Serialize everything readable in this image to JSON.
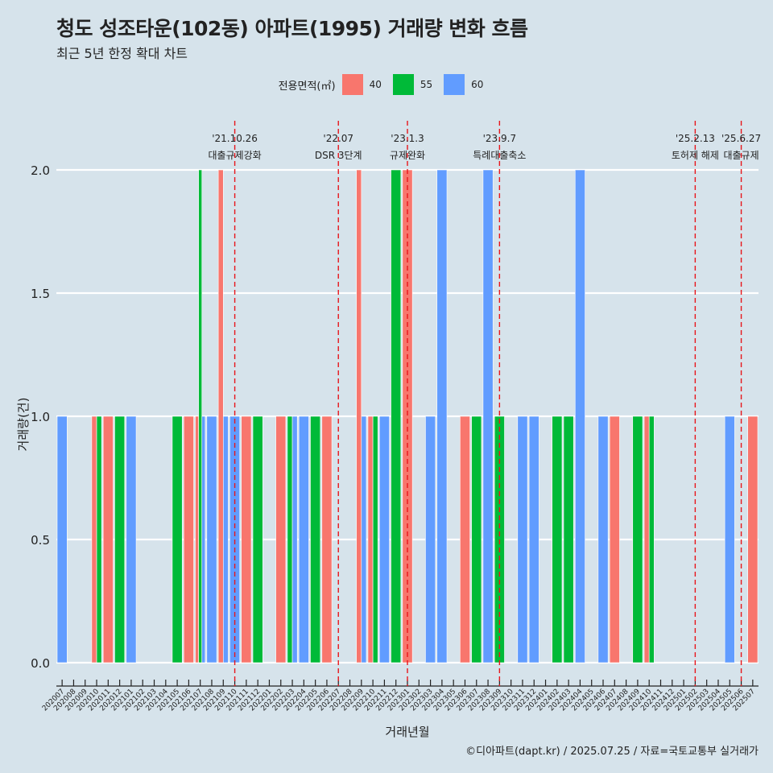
{
  "title": "청도 성조타운(102동) 아파트(1995) 거래량 변화 흐름",
  "subtitle": "최근 5년 한정 확대 차트",
  "caption": "©디아파트(dapt.kr) / 2025.07.25 / 자료=국토교통부 실거래가",
  "legend": {
    "title": "전용면적(㎡)",
    "items": [
      {
        "label": "40",
        "color": "#f8766d"
      },
      {
        "label": "55",
        "color": "#00ba38"
      },
      {
        "label": "60",
        "color": "#619cff"
      }
    ]
  },
  "chart_data": {
    "type": "bar",
    "xlabel": "거래년월",
    "ylabel": "거래량(건)",
    "ylim": [
      0,
      2
    ],
    "yticks": [
      "0.0",
      "0.5",
      "1.0",
      "1.5",
      "2.0"
    ],
    "grid": true,
    "legend_position": "top",
    "categories": [
      "202007",
      "202008",
      "202009",
      "202010",
      "202011",
      "202012",
      "202101",
      "202102",
      "202103",
      "202104",
      "202105",
      "202106",
      "202107",
      "202108",
      "202109",
      "202110",
      "202111",
      "202112",
      "202201",
      "202202",
      "202203",
      "202204",
      "202205",
      "202206",
      "202207",
      "202208",
      "202209",
      "202210",
      "202211",
      "202212",
      "202301",
      "202302",
      "202303",
      "202304",
      "202305",
      "202306",
      "202307",
      "202308",
      "202309",
      "202310",
      "202311",
      "202312",
      "202401",
      "202402",
      "202403",
      "202404",
      "202405",
      "202406",
      "202407",
      "202408",
      "202409",
      "202410",
      "202411",
      "202412",
      "202501",
      "202502",
      "202503",
      "202504",
      "202505",
      "202506",
      "202507"
    ],
    "bars": [
      {
        "month": "202007",
        "series": [
          "60"
        ],
        "values": [
          1
        ]
      },
      {
        "month": "202010",
        "series": [
          "40",
          "55"
        ],
        "values": [
          1,
          1
        ]
      },
      {
        "month": "202011",
        "series": [
          "40"
        ],
        "values": [
          1
        ]
      },
      {
        "month": "202012",
        "series": [
          "55"
        ],
        "values": [
          1
        ]
      },
      {
        "month": "202101",
        "series": [
          "60"
        ],
        "values": [
          1
        ]
      },
      {
        "month": "202105",
        "series": [
          "55"
        ],
        "values": [
          1
        ]
      },
      {
        "month": "202106",
        "series": [
          "40"
        ],
        "values": [
          1
        ]
      },
      {
        "month": "202107",
        "series": [
          "40",
          "55",
          "60"
        ],
        "values": [
          1,
          2,
          1
        ]
      },
      {
        "month": "202108",
        "series": [
          "60"
        ],
        "values": [
          1
        ]
      },
      {
        "month": "202109",
        "series": [
          "40",
          "60"
        ],
        "values": [
          2,
          1
        ]
      },
      {
        "month": "202110",
        "series": [
          "60"
        ],
        "values": [
          1
        ]
      },
      {
        "month": "202111",
        "series": [
          "40"
        ],
        "values": [
          1
        ]
      },
      {
        "month": "202112",
        "series": [
          "55"
        ],
        "values": [
          1
        ]
      },
      {
        "month": "202202",
        "series": [
          "40"
        ],
        "values": [
          1
        ]
      },
      {
        "month": "202203",
        "series": [
          "55",
          "60"
        ],
        "values": [
          1,
          1
        ]
      },
      {
        "month": "202204",
        "series": [
          "60"
        ],
        "values": [
          1
        ]
      },
      {
        "month": "202205",
        "series": [
          "55"
        ],
        "values": [
          1
        ]
      },
      {
        "month": "202206",
        "series": [
          "40"
        ],
        "values": [
          1
        ]
      },
      {
        "month": "202209",
        "series": [
          "40",
          "60"
        ],
        "values": [
          2,
          1
        ]
      },
      {
        "month": "202210",
        "series": [
          "40",
          "55"
        ],
        "values": [
          1,
          1
        ]
      },
      {
        "month": "202211",
        "series": [
          "60"
        ],
        "values": [
          1
        ]
      },
      {
        "month": "202212",
        "series": [
          "55"
        ],
        "values": [
          2
        ]
      },
      {
        "month": "202301",
        "series": [
          "40"
        ],
        "values": [
          2
        ]
      },
      {
        "month": "202303",
        "series": [
          "60"
        ],
        "values": [
          1
        ]
      },
      {
        "month": "202304",
        "series": [
          "60"
        ],
        "values": [
          2
        ]
      },
      {
        "month": "202306",
        "series": [
          "40"
        ],
        "values": [
          1
        ]
      },
      {
        "month": "202307",
        "series": [
          "55"
        ],
        "values": [
          1
        ]
      },
      {
        "month": "202308",
        "series": [
          "60"
        ],
        "values": [
          2
        ]
      },
      {
        "month": "202309",
        "series": [
          "55"
        ],
        "values": [
          1
        ]
      },
      {
        "month": "202311",
        "series": [
          "60"
        ],
        "values": [
          1
        ]
      },
      {
        "month": "202312",
        "series": [
          "60"
        ],
        "values": [
          1
        ]
      },
      {
        "month": "202402",
        "series": [
          "55"
        ],
        "values": [
          1
        ]
      },
      {
        "month": "202403",
        "series": [
          "55"
        ],
        "values": [
          1
        ]
      },
      {
        "month": "202404",
        "series": [
          "60"
        ],
        "values": [
          2
        ]
      },
      {
        "month": "202406",
        "series": [
          "60"
        ],
        "values": [
          1
        ]
      },
      {
        "month": "202407",
        "series": [
          "40"
        ],
        "values": [
          1
        ]
      },
      {
        "month": "202409",
        "series": [
          "55"
        ],
        "values": [
          1
        ]
      },
      {
        "month": "202410",
        "series": [
          "40",
          "55"
        ],
        "values": [
          1,
          1
        ]
      },
      {
        "month": "202505",
        "series": [
          "60"
        ],
        "values": [
          1
        ]
      },
      {
        "month": "202507",
        "series": [
          "40"
        ],
        "values": [
          1
        ]
      }
    ],
    "annotations": [
      {
        "month": "202110",
        "date": "'21.10.26",
        "text": "대출규제강화"
      },
      {
        "month": "202207",
        "date": "'22.07",
        "text": "DSR 3단계"
      },
      {
        "month": "202301",
        "date": "'23.1.3",
        "text": "규제완화"
      },
      {
        "month": "202309",
        "date": "'23.9.7",
        "text": "특례대출축소"
      },
      {
        "month": "202502",
        "date": "'25.2.13",
        "text": "토허제 해제"
      },
      {
        "month": "202506",
        "date": "'25.6.27",
        "text": "대출규제"
      }
    ]
  }
}
